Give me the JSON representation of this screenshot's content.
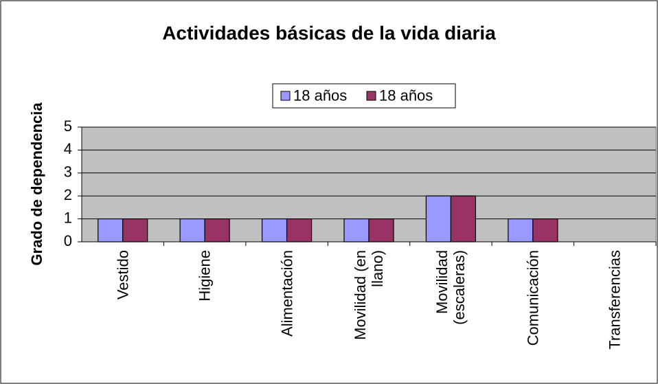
{
  "chart_data": {
    "type": "bar",
    "title": "Actividades básicas de la vida diaria",
    "y_label": "Grado de dependencia",
    "categories": [
      "Vestido",
      "Higiene",
      "Alimentación",
      "Movilidad (en llano)",
      "Movilidad (escaleras)",
      "Comunicación",
      "Transferencias"
    ],
    "series": [
      {
        "name": "18 años",
        "color": "#9999ff",
        "values": [
          1,
          1,
          1,
          1,
          2,
          1,
          0
        ]
      },
      {
        "name": "18 años",
        "color": "#993366",
        "values": [
          1,
          1,
          1,
          1,
          2,
          1,
          0
        ]
      }
    ],
    "ylim": [
      0,
      5
    ],
    "yticks": [
      0,
      1,
      2,
      3,
      4,
      5
    ],
    "grid": true,
    "plot_color": "#c0c0c0",
    "legend": "top"
  }
}
